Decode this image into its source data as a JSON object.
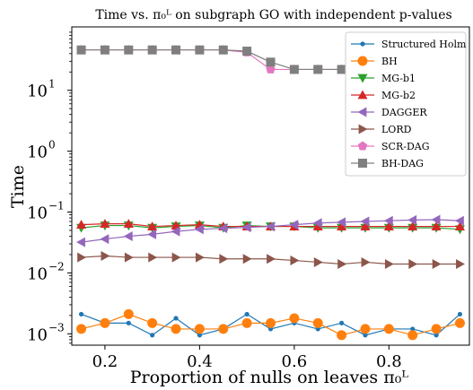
{
  "chart_data": {
    "type": "line",
    "title": "Time vs. π₀ᴸ on subgraph GO with independent p-values",
    "xlabel": "Proportion of nulls on leaves π₀ᴸ",
    "ylabel": "Time",
    "yscale": "log",
    "xlim": [
      0.13,
      0.97
    ],
    "ylim": [
      0.00065,
      110
    ],
    "xticks": [
      0.2,
      0.4,
      0.6,
      0.8
    ],
    "xtick_labels": [
      "0.2",
      "0.4",
      "0.6",
      "0.8"
    ],
    "yticks": [
      0.001,
      0.01,
      0.1,
      1,
      10
    ],
    "ytick_labels": [
      "10",
      "10",
      "10",
      "10",
      "10"
    ],
    "ytick_exponents": [
      "−3",
      "−2",
      "−1",
      "0",
      "1"
    ],
    "grid": false,
    "legend_position": "top-right",
    "x": [
      0.15,
      0.2,
      0.25,
      0.3,
      0.35,
      0.4,
      0.45,
      0.5,
      0.55,
      0.6,
      0.65,
      0.7,
      0.75,
      0.8,
      0.85,
      0.9,
      0.95
    ],
    "series": [
      {
        "name": "Structured Holm",
        "color": "#1f77b4",
        "marker": "circle-small",
        "values": [
          0.0021,
          0.0015,
          0.0015,
          0.00095,
          0.0018,
          0.00095,
          0.0012,
          0.0021,
          0.0012,
          0.0015,
          0.0012,
          0.0015,
          0.00095,
          0.0012,
          0.0012,
          0.00095,
          0.0021
        ]
      },
      {
        "name": "BH",
        "color": "#ff7f0e",
        "marker": "circle",
        "values": [
          0.0012,
          0.0015,
          0.0021,
          0.0015,
          0.0012,
          0.0012,
          0.0012,
          0.0015,
          0.0015,
          0.0018,
          0.0015,
          0.00095,
          0.0012,
          0.0012,
          0.00095,
          0.0012,
          0.0015
        ]
      },
      {
        "name": "MG-b1",
        "color": "#2ca02c",
        "marker": "triangle-down",
        "values": [
          0.055,
          0.06,
          0.06,
          0.055,
          0.058,
          0.06,
          0.055,
          0.06,
          0.058,
          0.058,
          0.055,
          0.055,
          0.055,
          0.055,
          0.055,
          0.055,
          0.052
        ]
      },
      {
        "name": "MG-b2",
        "color": "#d62728",
        "marker": "triangle-up",
        "values": [
          0.062,
          0.064,
          0.064,
          0.058,
          0.06,
          0.062,
          0.058,
          0.058,
          0.058,
          0.058,
          0.058,
          0.058,
          0.058,
          0.058,
          0.058,
          0.058,
          0.058
        ]
      },
      {
        "name": "DAGGER",
        "color": "#9467bd",
        "marker": "triangle-left",
        "values": [
          0.032,
          0.036,
          0.04,
          0.043,
          0.048,
          0.052,
          0.054,
          0.056,
          0.058,
          0.062,
          0.066,
          0.068,
          0.07,
          0.072,
          0.074,
          0.075,
          0.072
        ]
      },
      {
        "name": "LORD",
        "color": "#8c564b",
        "marker": "triangle-right",
        "values": [
          0.018,
          0.019,
          0.018,
          0.018,
          0.018,
          0.018,
          0.017,
          0.017,
          0.017,
          0.016,
          0.015,
          0.014,
          0.015,
          0.014,
          0.014,
          0.014,
          0.014
        ]
      },
      {
        "name": "SCR-DAG",
        "color": "#e377c2",
        "marker": "pentagon",
        "values": [
          46,
          46,
          46,
          46,
          46,
          46,
          46,
          42,
          22,
          22,
          22,
          22,
          null,
          null,
          null,
          null,
          null
        ]
      },
      {
        "name": "BH-DAG",
        "color": "#7f7f7f",
        "marker": "square",
        "values": [
          46,
          46,
          46,
          46,
          46,
          46,
          46,
          44,
          29,
          22,
          22,
          22,
          null,
          null,
          null,
          null,
          null
        ]
      }
    ]
  }
}
